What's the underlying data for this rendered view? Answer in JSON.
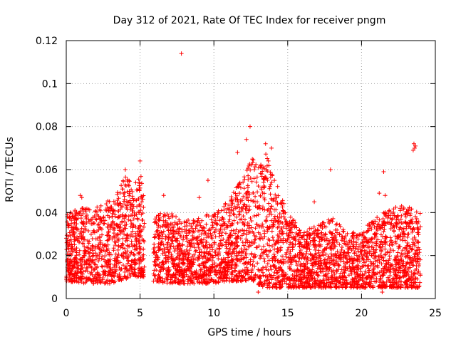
{
  "chart_data": {
    "type": "scatter",
    "title": "Day 312 of 2021, Rate Of TEC Index for receiver pngm",
    "xlabel": "GPS time / hours",
    "ylabel": "ROTI / TECUs",
    "xlim": [
      0,
      25
    ],
    "ylim": [
      0,
      0.12
    ],
    "xticks": [
      0,
      5,
      10,
      15,
      20,
      25
    ],
    "yticks": [
      0,
      0.02,
      0.04,
      0.06,
      0.08,
      0.1,
      0.12
    ],
    "xtick_labels": [
      "0",
      "5",
      "10",
      "15",
      "20",
      "25"
    ],
    "ytick_labels": [
      "0",
      "0.02",
      "0.04",
      "0.06",
      "0.08",
      "0.1",
      "0.12"
    ],
    "grid": true,
    "marker": "+",
    "color": "#ff0000",
    "data_gaps_hours": [
      [
        5.3,
        5.9
      ]
    ],
    "series": [
      {
        "name": "ROTI",
        "envelope": [
          {
            "x": 0.0,
            "lo": 0.008,
            "hi": 0.04
          },
          {
            "x": 1.0,
            "lo": 0.007,
            "hi": 0.042
          },
          {
            "x": 2.0,
            "lo": 0.007,
            "hi": 0.043
          },
          {
            "x": 3.0,
            "lo": 0.007,
            "hi": 0.046
          },
          {
            "x": 3.5,
            "lo": 0.008,
            "hi": 0.05
          },
          {
            "x": 4.0,
            "lo": 0.009,
            "hi": 0.058
          },
          {
            "x": 4.5,
            "lo": 0.01,
            "hi": 0.052
          },
          {
            "x": 5.0,
            "lo": 0.01,
            "hi": 0.06
          },
          {
            "x": 5.3,
            "lo": 0.01,
            "hi": 0.045
          },
          {
            "x": 5.9,
            "lo": 0.008,
            "hi": 0.04
          },
          {
            "x": 7.0,
            "lo": 0.007,
            "hi": 0.04
          },
          {
            "x": 8.0,
            "lo": 0.007,
            "hi": 0.036
          },
          {
            "x": 9.0,
            "lo": 0.007,
            "hi": 0.038
          },
          {
            "x": 10.0,
            "lo": 0.007,
            "hi": 0.04
          },
          {
            "x": 11.0,
            "lo": 0.008,
            "hi": 0.046
          },
          {
            "x": 12.0,
            "lo": 0.008,
            "hi": 0.058
          },
          {
            "x": 12.5,
            "lo": 0.009,
            "hi": 0.066
          },
          {
            "x": 13.0,
            "lo": 0.006,
            "hi": 0.062
          },
          {
            "x": 13.5,
            "lo": 0.005,
            "hi": 0.068
          },
          {
            "x": 14.0,
            "lo": 0.005,
            "hi": 0.058
          },
          {
            "x": 15.0,
            "lo": 0.005,
            "hi": 0.04
          },
          {
            "x": 16.0,
            "lo": 0.005,
            "hi": 0.032
          },
          {
            "x": 17.0,
            "lo": 0.005,
            "hi": 0.034
          },
          {
            "x": 18.0,
            "lo": 0.005,
            "hi": 0.038
          },
          {
            "x": 19.0,
            "lo": 0.005,
            "hi": 0.032
          },
          {
            "x": 20.0,
            "lo": 0.005,
            "hi": 0.03
          },
          {
            "x": 21.0,
            "lo": 0.005,
            "hi": 0.04
          },
          {
            "x": 22.0,
            "lo": 0.005,
            "hi": 0.042
          },
          {
            "x": 23.0,
            "lo": 0.005,
            "hi": 0.044
          },
          {
            "x": 24.0,
            "lo": 0.005,
            "hi": 0.04
          }
        ],
        "notable_points": [
          {
            "x": 7.8,
            "y": 0.114
          },
          {
            "x": 12.45,
            "y": 0.08
          },
          {
            "x": 12.2,
            "y": 0.074
          },
          {
            "x": 11.6,
            "y": 0.068
          },
          {
            "x": 13.5,
            "y": 0.072
          },
          {
            "x": 13.9,
            "y": 0.07
          },
          {
            "x": 23.55,
            "y": 0.072
          },
          {
            "x": 23.6,
            "y": 0.07
          },
          {
            "x": 23.5,
            "y": 0.069
          },
          {
            "x": 23.65,
            "y": 0.071
          },
          {
            "x": 4.0,
            "y": 0.06
          },
          {
            "x": 5.0,
            "y": 0.064
          },
          {
            "x": 17.9,
            "y": 0.06
          },
          {
            "x": 21.5,
            "y": 0.059
          },
          {
            "x": 0.95,
            "y": 0.048
          },
          {
            "x": 1.05,
            "y": 0.047
          },
          {
            "x": 6.6,
            "y": 0.048
          },
          {
            "x": 9.0,
            "y": 0.047
          },
          {
            "x": 9.6,
            "y": 0.055
          },
          {
            "x": 16.8,
            "y": 0.045
          },
          {
            "x": 21.2,
            "y": 0.049
          },
          {
            "x": 21.6,
            "y": 0.048
          },
          {
            "x": 13.0,
            "y": 0.003
          },
          {
            "x": 21.4,
            "y": 0.003
          }
        ]
      }
    ]
  }
}
